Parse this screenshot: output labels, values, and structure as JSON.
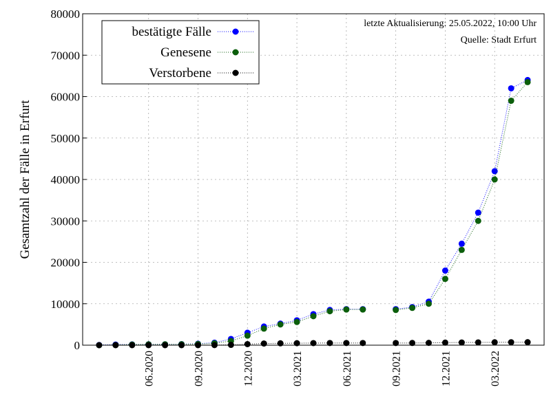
{
  "chart_data": {
    "type": "scatter",
    "ylabel": "Gesamtzahl der Fälle in Erfurt",
    "annotations": [
      "letzte Aktualisierung: 25.05.2022, 10:00 Uhr",
      "Quelle: Stadt Erfurt"
    ],
    "x": [
      "2020-03",
      "2020-04",
      "2020-05",
      "2020-06",
      "2020-07",
      "2020-08",
      "2020-09",
      "2020-10",
      "2020-11",
      "2020-12",
      "2021-01",
      "2021-02",
      "2021-03",
      "2021-04",
      "2021-05",
      "2021-06",
      "2021-07",
      "2021-08",
      "2021-09",
      "2021-10",
      "2021-11",
      "2021-12",
      "2022-01",
      "2022-02",
      "2022-03",
      "2022-04",
      "2022-05"
    ],
    "series": [
      {
        "name": "bestätigte Fälle",
        "color": "#0000ff",
        "values": [
          50,
          150,
          180,
          200,
          210,
          250,
          350,
          600,
          1500,
          3000,
          4500,
          5200,
          6000,
          7500,
          8500,
          8700,
          8700,
          null,
          8700,
          9200,
          10500,
          18000,
          24500,
          32000,
          42000,
          62000,
          64000
        ]
      },
      {
        "name": "Genesene",
        "color": "#0b5e0b",
        "values": [
          0,
          50,
          150,
          190,
          200,
          220,
          280,
          450,
          1000,
          2300,
          4000,
          5000,
          5600,
          7000,
          8200,
          8600,
          8600,
          null,
          8500,
          9000,
          10000,
          16000,
          23000,
          30000,
          40000,
          59000,
          63500
        ]
      },
      {
        "name": "Verstorbene",
        "color": "#000000",
        "values": [
          0,
          0,
          5,
          5,
          5,
          5,
          10,
          20,
          80,
          250,
          400,
          450,
          480,
          500,
          520,
          520,
          520,
          null,
          520,
          530,
          560,
          620,
          650,
          670,
          700,
          710,
          720
        ]
      }
    ],
    "xlim": [
      "2020-02",
      "2022-06"
    ],
    "xticks": [
      {
        "value": "2020-06",
        "label": "06.2020"
      },
      {
        "value": "2020-09",
        "label": "09.2020"
      },
      {
        "value": "2020-12",
        "label": "12.2020"
      },
      {
        "value": "2021-03",
        "label": "03.2021"
      },
      {
        "value": "2021-06",
        "label": "06.2021"
      },
      {
        "value": "2021-09",
        "label": "09.2021"
      },
      {
        "value": "2021-12",
        "label": "12.2021"
      },
      {
        "value": "2022-03",
        "label": "03.2022"
      }
    ],
    "ylim": [
      0,
      80000
    ],
    "yticks": [
      0,
      10000,
      20000,
      30000,
      40000,
      50000,
      60000,
      70000,
      80000
    ],
    "grid": true,
    "legend": "upper left"
  }
}
